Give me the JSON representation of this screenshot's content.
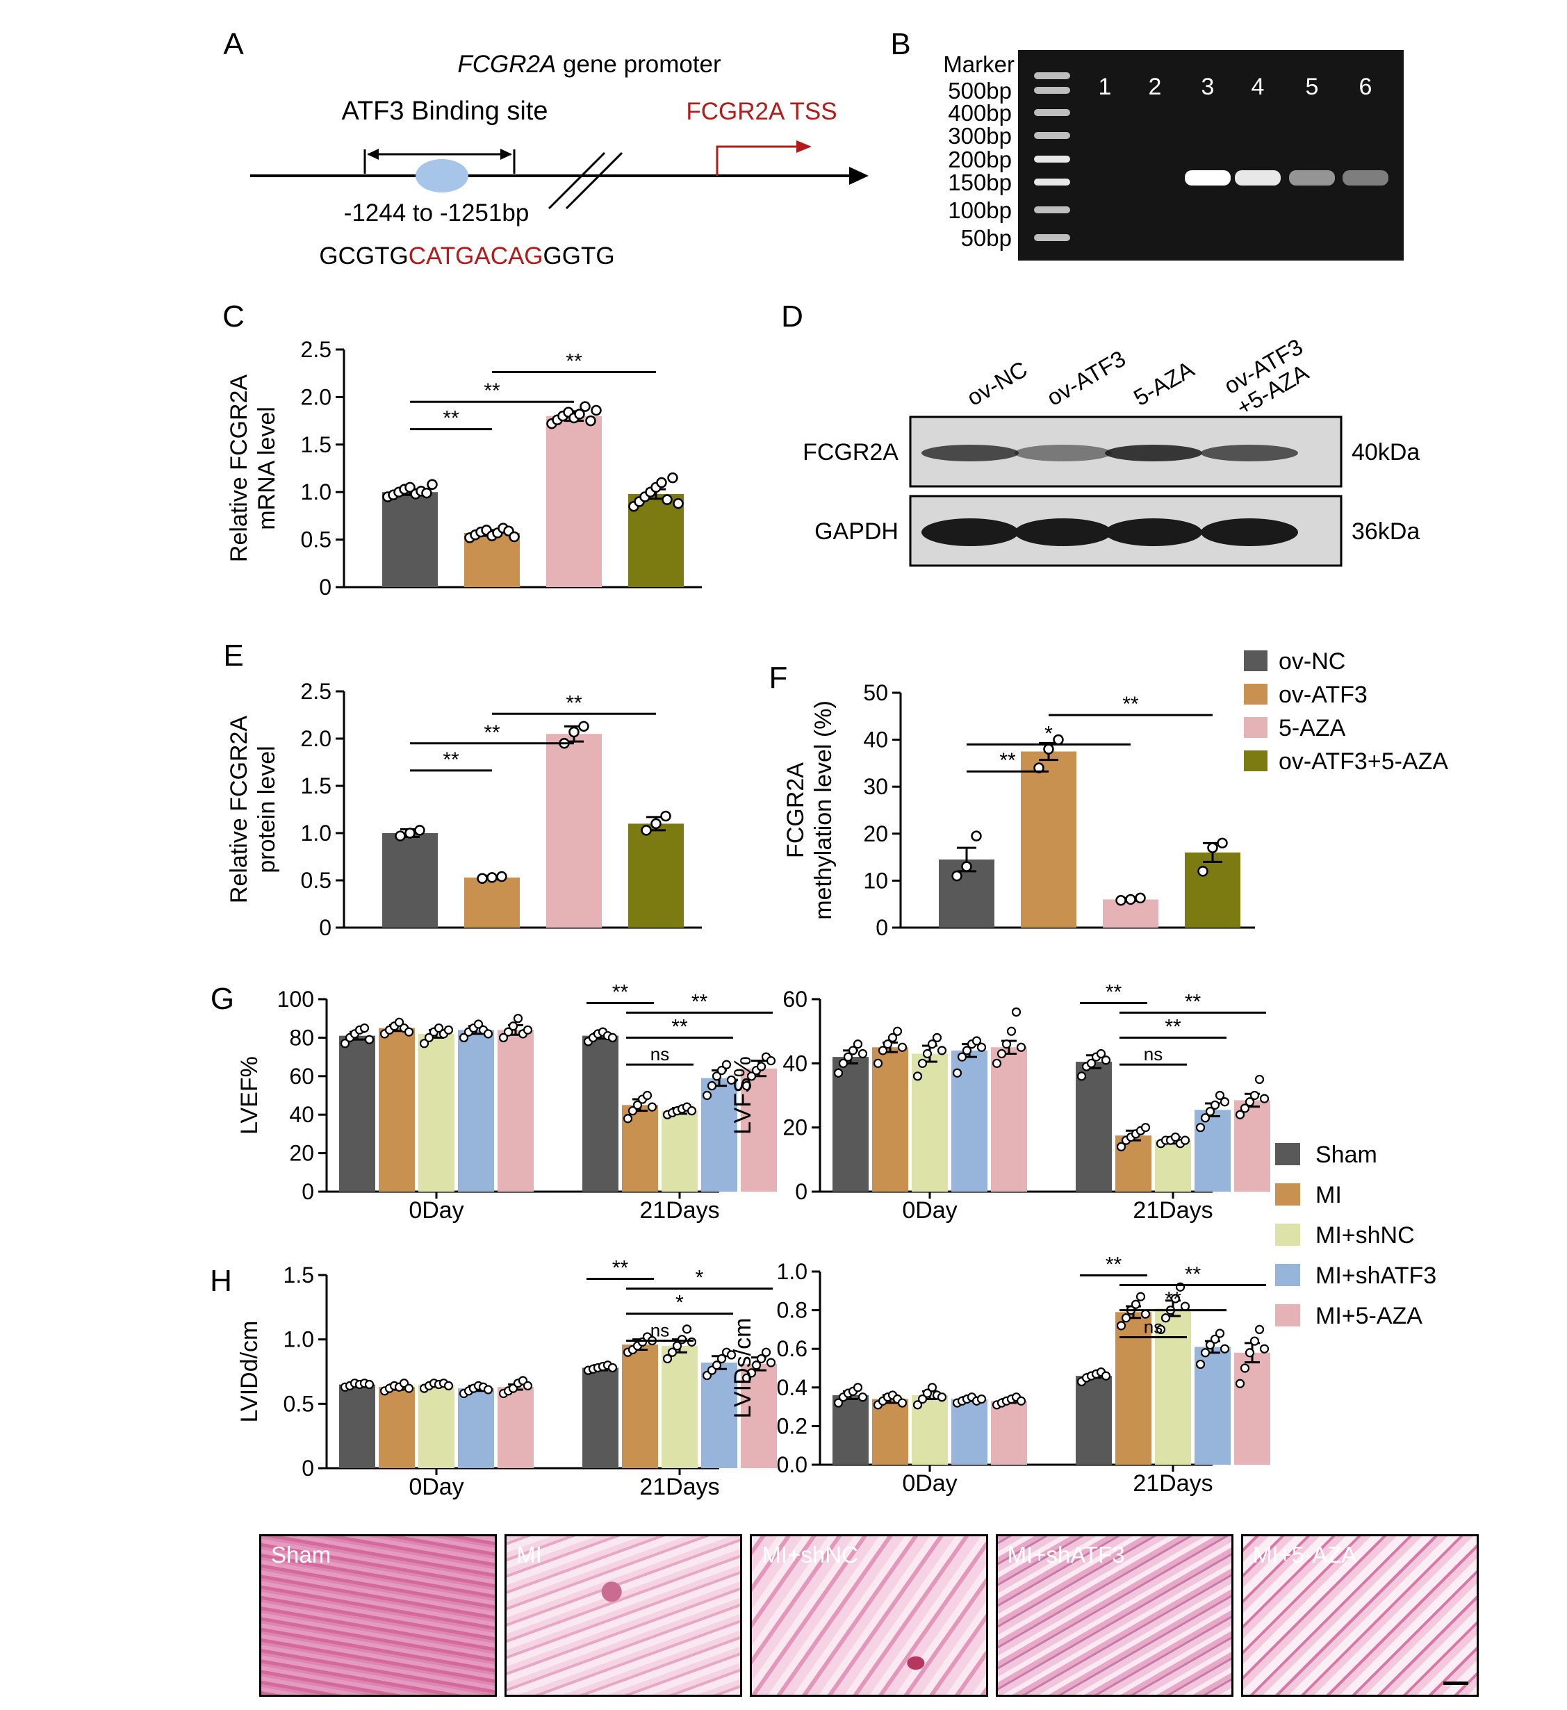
{
  "panel_letters": [
    "A",
    "B",
    "C",
    "D",
    "E",
    "F",
    "G",
    "H"
  ],
  "panel_a": {
    "title_gene": "FCGR2A",
    "title_rest": " gene promoter",
    "binding_label": "ATF3 Binding site",
    "tss_label": "FCGR2A TSS",
    "range_label": "-1244 to -1251bp",
    "seq_prefix": "GCGTG",
    "seq_site": "CATGACAG",
    "seq_suffix": "GGTG"
  },
  "panel_b": {
    "marker_label": "Marker",
    "marker_sizes": [
      "500bp",
      "400bp",
      "300bp",
      "200bp",
      "150bp",
      "100bp",
      "50bp"
    ],
    "lanes": [
      "1",
      "2",
      "3",
      "4",
      "5",
      "6"
    ],
    "lane_band_intensity": [
      0,
      0,
      1.0,
      0.9,
      0.55,
      0.45
    ]
  },
  "panel_d": {
    "lanes": [
      "ov-NC",
      "ov-ATF3",
      "5-AZA",
      "ov-ATF3\n+5-AZA"
    ],
    "rows": [
      {
        "name": "FCGR2A",
        "size": "40kDa",
        "intensity": [
          0.75,
          0.5,
          0.85,
          0.7
        ]
      },
      {
        "name": "GAPDH",
        "size": "36kDa",
        "intensity": [
          1,
          1,
          1,
          1
        ]
      }
    ]
  },
  "legend_cef": {
    "items": [
      {
        "label": "ov-NC",
        "color": "#595959"
      },
      {
        "label": "ov-ATF3",
        "color": "#c8914f"
      },
      {
        "label": "5-AZA",
        "color": "#e5b3b5"
      },
      {
        "label": "ov-ATF3+5-AZA",
        "color": "#7b7b12"
      }
    ]
  },
  "legend_g": {
    "items": [
      {
        "label": "Sham",
        "color": "#595959"
      },
      {
        "label": "MI",
        "color": "#c8914f"
      },
      {
        "label": "MI+shNC",
        "color": "#dde3a8"
      },
      {
        "label": "MI+shATF3",
        "color": "#97b5da"
      },
      {
        "label": "MI+5-AZA",
        "color": "#e5b3b5"
      }
    ]
  },
  "panel_h": {
    "images": [
      "Sham",
      "MI",
      "MI+shNC",
      "MI+shATF3",
      "MI+5-AZA"
    ]
  },
  "chart_data": [
    {
      "id": "C",
      "type": "bar",
      "ylabel": "Relative FCGR2A\nmRNA level",
      "categories": [
        "ov-NC",
        "ov-ATF3",
        "5-AZA",
        "ov-ATF3+5-AZA"
      ],
      "values": [
        1.0,
        0.57,
        1.8,
        0.98
      ],
      "errors": [
        0.03,
        0.03,
        0.05,
        0.05
      ],
      "ylim": [
        0,
        2.5
      ],
      "yticks": [
        "0",
        "0.5",
        "1.0",
        "1.5",
        "2.0",
        "2.5"
      ],
      "points": [
        [
          0.95,
          0.97,
          1.0,
          1.03,
          1.05,
          0.98,
          1.01,
          0.99,
          1.08
        ],
        [
          0.52,
          0.55,
          0.58,
          0.6,
          0.54,
          0.57,
          0.62,
          0.59,
          0.53
        ],
        [
          1.72,
          1.76,
          1.8,
          1.84,
          1.78,
          1.82,
          1.9,
          1.75,
          1.86
        ],
        [
          0.85,
          0.9,
          0.95,
          1.0,
          1.05,
          1.1,
          0.92,
          1.15,
          0.88
        ]
      ],
      "sig": [
        {
          "from": 0,
          "to": 1,
          "label": "**"
        },
        {
          "from": 0,
          "to": 2,
          "label": "**"
        },
        {
          "from": 1,
          "to": 3,
          "label": "**"
        }
      ]
    },
    {
      "id": "E",
      "type": "bar",
      "ylabel": "Relative FCGR2A\nprotein level",
      "categories": [
        "ov-NC",
        "ov-ATF3",
        "5-AZA",
        "ov-ATF3+5-AZA"
      ],
      "values": [
        1.0,
        0.53,
        2.05,
        1.1
      ],
      "errors": [
        0.04,
        0.02,
        0.08,
        0.07
      ],
      "ylim": [
        0,
        2.5
      ],
      "yticks": [
        "0",
        "0.5",
        "1.0",
        "1.5",
        "2.0",
        "2.5"
      ],
      "points": [
        [
          0.97,
          1.0,
          1.03
        ],
        [
          0.52,
          0.53,
          0.54
        ],
        [
          1.95,
          2.07,
          2.13
        ],
        [
          1.03,
          1.1,
          1.18
        ]
      ],
      "sig": [
        {
          "from": 0,
          "to": 1,
          "label": "**"
        },
        {
          "from": 0,
          "to": 2,
          "label": "**"
        },
        {
          "from": 1,
          "to": 3,
          "label": "**"
        }
      ]
    },
    {
      "id": "F",
      "type": "bar",
      "ylabel": "FCGR2A\nmethylation level (%)",
      "categories": [
        "ov-NC",
        "ov-ATF3",
        "5-AZA",
        "ov-ATF3+5-AZA"
      ],
      "values": [
        14.5,
        37.5,
        6.0,
        16.0
      ],
      "errors": [
        2.5,
        1.8,
        0.3,
        2.0
      ],
      "ylim": [
        0,
        50
      ],
      "yticks": [
        "0",
        "10",
        "20",
        "30",
        "40",
        "50"
      ],
      "points": [
        [
          11,
          13,
          19.5
        ],
        [
          34,
          38,
          40
        ],
        [
          5.8,
          6.0,
          6.3
        ],
        [
          12,
          17,
          18
        ]
      ],
      "sig": [
        {
          "from": 0,
          "to": 1,
          "label": "**"
        },
        {
          "from": 0,
          "to": 2,
          "label": "*"
        },
        {
          "from": 1,
          "to": 3,
          "label": "**"
        }
      ]
    },
    {
      "id": "G-LVEF",
      "type": "bar",
      "ylabel": "LVEF%",
      "groups": [
        "0Day",
        "21Days"
      ],
      "series_names": [
        "Sham",
        "MI",
        "MI+shNC",
        "MI+shATF3",
        "MI+5-AZA"
      ],
      "values": [
        [
          81,
          85,
          82,
          84,
          84
        ],
        [
          81,
          45,
          42,
          59,
          64
        ]
      ],
      "errors": [
        [
          2,
          1.5,
          2,
          2,
          2.5
        ],
        [
          1.5,
          3,
          1.5,
          4,
          4
        ]
      ],
      "ylim": [
        0,
        100
      ],
      "yticks": [
        "0",
        "20",
        "40",
        "60",
        "80",
        "100"
      ],
      "points": [
        [
          [
            77,
            80,
            82,
            84,
            85,
            79
          ],
          [
            82,
            84,
            86,
            88,
            85,
            83
          ],
          [
            77,
            80,
            83,
            85,
            82,
            84
          ],
          [
            80,
            83,
            85,
            87,
            84,
            82
          ],
          [
            80,
            83,
            86,
            90,
            82,
            84
          ]
        ],
        [
          [
            78,
            80,
            82,
            83,
            81,
            80
          ],
          [
            38,
            42,
            45,
            48,
            50,
            44
          ],
          [
            40,
            41,
            42,
            43,
            44,
            42
          ],
          [
            50,
            55,
            60,
            63,
            66,
            58
          ],
          [
            55,
            60,
            63,
            65,
            70,
            68
          ]
        ]
      ],
      "sig": [
        {
          "group": 1,
          "from": 0,
          "to": 1,
          "label": "**"
        },
        {
          "group": 1,
          "from": 1,
          "to": 2,
          "label": "ns"
        },
        {
          "group": 1,
          "from": 1,
          "to": 3,
          "label": "**"
        },
        {
          "group": 1,
          "from": 1,
          "to": 4,
          "label": "**"
        }
      ]
    },
    {
      "id": "G-LVFS",
      "type": "bar",
      "ylabel": "LVFS%",
      "groups": [
        "0Day",
        "21Days"
      ],
      "series_names": [
        "Sham",
        "MI",
        "MI+shNC",
        "MI+shATF3",
        "MI+5-AZA"
      ],
      "values": [
        [
          42,
          45,
          43,
          44,
          45
        ],
        [
          40.5,
          17.5,
          16,
          25.5,
          28.5
        ]
      ],
      "errors": [
        [
          2,
          1.5,
          2.5,
          2,
          2
        ],
        [
          2,
          1.5,
          1,
          2,
          2
        ]
      ],
      "ylim": [
        0,
        60
      ],
      "yticks": [
        "0",
        "20",
        "40",
        "60"
      ],
      "points": [
        [
          [
            37,
            40,
            42,
            44,
            46,
            43
          ],
          [
            40,
            44,
            46,
            48,
            50,
            45
          ],
          [
            36,
            40,
            43,
            46,
            48,
            44
          ],
          [
            37,
            42,
            44,
            46,
            47,
            45
          ],
          [
            40,
            43,
            46,
            50,
            56,
            45
          ]
        ],
        [
          [
            36,
            39,
            40,
            42,
            43,
            41
          ],
          [
            14,
            16,
            17,
            18,
            19,
            20
          ],
          [
            15,
            16,
            16,
            17,
            15,
            16
          ],
          [
            20,
            23,
            25,
            27,
            30,
            28
          ],
          [
            24,
            26,
            28,
            30,
            35,
            29
          ]
        ]
      ],
      "sig": [
        {
          "group": 1,
          "from": 0,
          "to": 1,
          "label": "**"
        },
        {
          "group": 1,
          "from": 1,
          "to": 2,
          "label": "ns"
        },
        {
          "group": 1,
          "from": 1,
          "to": 3,
          "label": "**"
        },
        {
          "group": 1,
          "from": 1,
          "to": 4,
          "label": "**"
        }
      ]
    },
    {
      "id": "G-LVIDd",
      "type": "bar",
      "ylabel": "LVIDd/cm",
      "groups": [
        "0Day",
        "21Days"
      ],
      "series_names": [
        "Sham",
        "MI",
        "MI+shNC",
        "MI+shATF3",
        "MI+5-AZA"
      ],
      "values": [
        [
          0.65,
          0.63,
          0.65,
          0.62,
          0.63
        ],
        [
          0.78,
          0.96,
          0.95,
          0.82,
          0.81
        ]
      ],
      "errors": [
        [
          0.01,
          0.02,
          0.01,
          0.02,
          0.02
        ],
        [
          0.02,
          0.04,
          0.05,
          0.05,
          0.05
        ]
      ],
      "ylim": [
        0,
        1.5
      ],
      "yticks": [
        "0",
        "0.5",
        "1.0",
        "1.5"
      ],
      "points": [
        [
          [
            0.63,
            0.64,
            0.66,
            0.65,
            0.66,
            0.65
          ],
          [
            0.6,
            0.62,
            0.64,
            0.63,
            0.66,
            0.62
          ],
          [
            0.62,
            0.64,
            0.66,
            0.65,
            0.66,
            0.64
          ],
          [
            0.58,
            0.6,
            0.62,
            0.64,
            0.63,
            0.61
          ],
          [
            0.58,
            0.6,
            0.62,
            0.66,
            0.68,
            0.64
          ]
        ],
        [
          [
            0.76,
            0.77,
            0.78,
            0.79,
            0.8,
            0.78
          ],
          [
            0.9,
            0.92,
            0.95,
            0.98,
            1.02,
            0.99
          ],
          [
            0.85,
            0.9,
            0.95,
            1.0,
            1.08,
            0.98
          ],
          [
            0.72,
            0.76,
            0.8,
            0.85,
            0.9,
            0.88
          ],
          [
            0.7,
            0.74,
            0.8,
            0.85,
            0.9,
            0.82
          ]
        ]
      ],
      "sig": [
        {
          "group": 1,
          "from": 0,
          "to": 1,
          "label": "**"
        },
        {
          "group": 1,
          "from": 1,
          "to": 2,
          "label": "ns"
        },
        {
          "group": 1,
          "from": 1,
          "to": 3,
          "label": "*"
        },
        {
          "group": 1,
          "from": 1,
          "to": 4,
          "label": "*"
        }
      ]
    },
    {
      "id": "G-LVIDs",
      "type": "bar",
      "ylabel": "LVIDs/cm",
      "groups": [
        "0Day",
        "21Days"
      ],
      "series_names": [
        "Sham",
        "MI",
        "MI+shNC",
        "MI+shATF3",
        "MI+5-AZA"
      ],
      "values": [
        [
          0.36,
          0.34,
          0.36,
          0.34,
          0.33
        ],
        [
          0.46,
          0.79,
          0.81,
          0.61,
          0.58
        ]
      ],
      "errors": [
        [
          0.02,
          0.02,
          0.02,
          0.01,
          0.01
        ],
        [
          0.01,
          0.03,
          0.04,
          0.03,
          0.05
        ]
      ],
      "ylim": [
        0,
        1.0
      ],
      "yticks": [
        "0.0",
        "0.2",
        "0.4",
        "0.6",
        "0.8",
        "1.0"
      ],
      "points": [
        [
          [
            0.32,
            0.35,
            0.37,
            0.38,
            0.4,
            0.35
          ],
          [
            0.31,
            0.33,
            0.35,
            0.36,
            0.34,
            0.32
          ],
          [
            0.31,
            0.34,
            0.37,
            0.4,
            0.36,
            0.35
          ],
          [
            0.32,
            0.33,
            0.34,
            0.35,
            0.33,
            0.34
          ],
          [
            0.31,
            0.32,
            0.33,
            0.34,
            0.35,
            0.33
          ]
        ],
        [
          [
            0.43,
            0.45,
            0.46,
            0.47,
            0.48,
            0.46
          ],
          [
            0.72,
            0.76,
            0.8,
            0.83,
            0.87,
            0.78
          ],
          [
            0.7,
            0.76,
            0.8,
            0.86,
            0.92,
            0.82
          ],
          [
            0.52,
            0.58,
            0.62,
            0.65,
            0.68,
            0.6
          ],
          [
            0.42,
            0.5,
            0.58,
            0.64,
            0.7,
            0.6
          ]
        ]
      ],
      "sig": [
        {
          "group": 1,
          "from": 0,
          "to": 1,
          "label": "**"
        },
        {
          "group": 1,
          "from": 1,
          "to": 2,
          "label": "ns"
        },
        {
          "group": 1,
          "from": 1,
          "to": 3,
          "label": "**"
        },
        {
          "group": 1,
          "from": 1,
          "to": 4,
          "label": "**"
        }
      ]
    }
  ]
}
